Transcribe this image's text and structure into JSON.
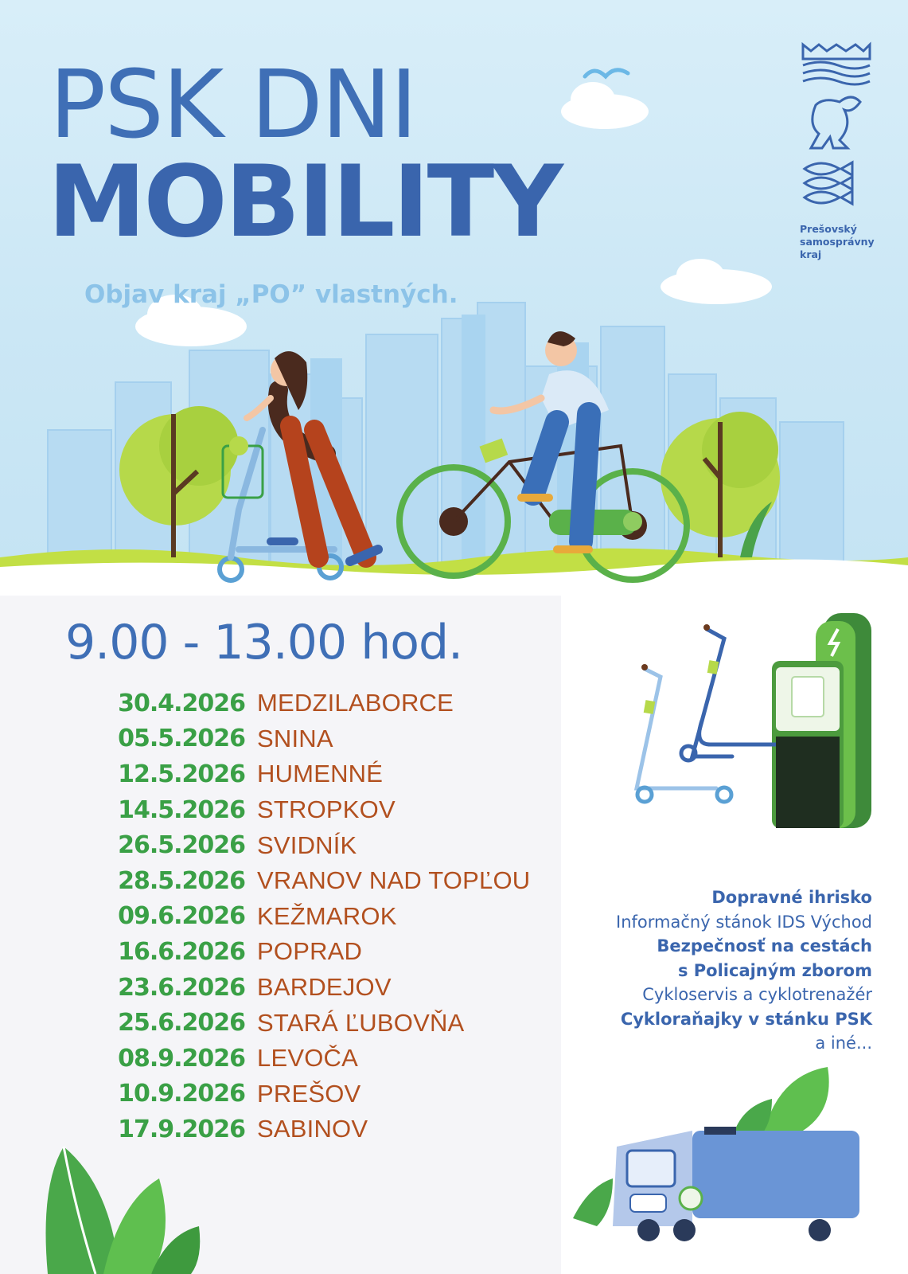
{
  "title": {
    "line1": "PSK DNI",
    "line2": "MOBILITY"
  },
  "subtitle": "Objav kraj „PO” vlastných.",
  "logo": {
    "icon": "psk-crest-icon",
    "name": "Prešovský samosprávny kraj",
    "lines": [
      "Prešovský",
      "samosprávny",
      "kraj"
    ]
  },
  "hours": "9.00 - 13.00 hod.",
  "schedule": [
    {
      "date": "30.4.2026",
      "town": "MEDZILABORCE"
    },
    {
      "date": "05.5.2026",
      "town": "SNINA"
    },
    {
      "date": "12.5.2026",
      "town": "HUMENNÉ"
    },
    {
      "date": "14.5.2026",
      "town": "STROPKOV"
    },
    {
      "date": "26.5.2026",
      "town": "SVIDNÍK"
    },
    {
      "date": "28.5.2026",
      "town": "VRANOV NAD TOPĽOU"
    },
    {
      "date": "09.6.2026",
      "town": "KEŽMAROK"
    },
    {
      "date": "16.6.2026",
      "town": "POPRAD"
    },
    {
      "date": "23.6.2026",
      "town": "BARDEJOV"
    },
    {
      "date": "25.6.2026",
      "town": "STARÁ ĽUBOVŇA"
    },
    {
      "date": "08.9.2026",
      "town": "LEVOČA"
    },
    {
      "date": "10.9.2026",
      "town": "PREŠOV"
    },
    {
      "date": "17.9.2026",
      "town": "SABINOV"
    }
  ],
  "activities": [
    {
      "text": "Dopravné ihrisko",
      "bold": true
    },
    {
      "text": "Informačný stánok IDS Východ",
      "bold": false
    },
    {
      "text": "Bezpečnosť na cestách",
      "bold": true
    },
    {
      "text": "s Policajným zborom",
      "bold": true
    },
    {
      "text": "Cykloservis a cyklotrenažér",
      "bold": false
    },
    {
      "text": "Cykloraňajky v stánku PSK",
      "bold": true
    },
    {
      "text": "a iné...",
      "bold": false
    }
  ],
  "colors": {
    "brand_blue": "#3a65ad",
    "sky": "#cde9f6",
    "date_green": "#3aa046",
    "town_rust": "#b2501f",
    "subtitle_light_blue": "#8cc3e8"
  },
  "illustrations": [
    "city-skyline-icon",
    "cloud-icon",
    "bird-icon",
    "tree-icon",
    "woman-on-scooter-icon",
    "man-on-ebike-icon",
    "scooter-charging-station-icon",
    "electric-truck-icon",
    "leaf-icon"
  ]
}
